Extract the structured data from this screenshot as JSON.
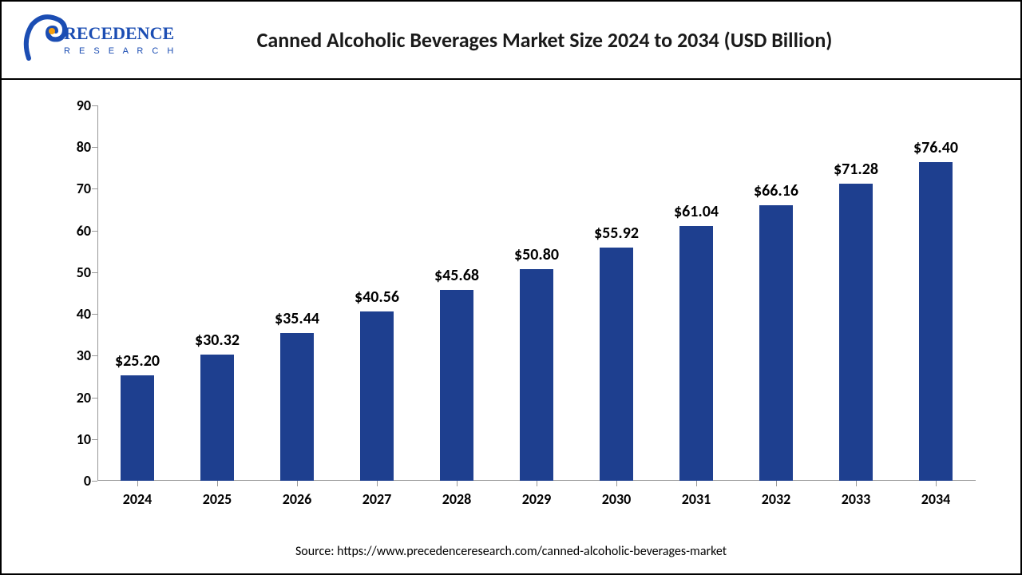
{
  "title": "Canned Alcoholic Beverages Market Size 2024 to 2034 (USD Billion)",
  "logo": {
    "text_upper": "RECEDENCE",
    "text_lower": "R E S E A R C H",
    "color_blue": "#1b4db3",
    "color_orange": "#f59e0b"
  },
  "chart": {
    "type": "bar",
    "ylim": [
      0,
      90
    ],
    "ytick_step": 10,
    "yticks": [
      0,
      10,
      20,
      30,
      40,
      50,
      60,
      70,
      80,
      90
    ],
    "categories": [
      "2024",
      "2025",
      "2026",
      "2027",
      "2028",
      "2029",
      "2030",
      "2031",
      "2032",
      "2033",
      "2034"
    ],
    "values": [
      25.2,
      30.32,
      35.44,
      40.56,
      45.68,
      50.8,
      55.92,
      61.04,
      66.16,
      71.28,
      76.4
    ],
    "value_labels": [
      "$25.20",
      "$30.32",
      "$35.44",
      "$40.56",
      "$45.68",
      "$50.80",
      "$55.92",
      "$61.04",
      "$66.16",
      "$71.28",
      "$76.40"
    ],
    "bar_color": "#1e3f8f",
    "bar_width_ratio": 0.42,
    "axis_color": "#999999",
    "label_fontsize": 18,
    "value_fontsize": 20,
    "title_fontsize": 26,
    "background_color": "#ffffff"
  },
  "source": "Source: https://www.precedenceresearch.com/canned-alcoholic-beverages-market"
}
